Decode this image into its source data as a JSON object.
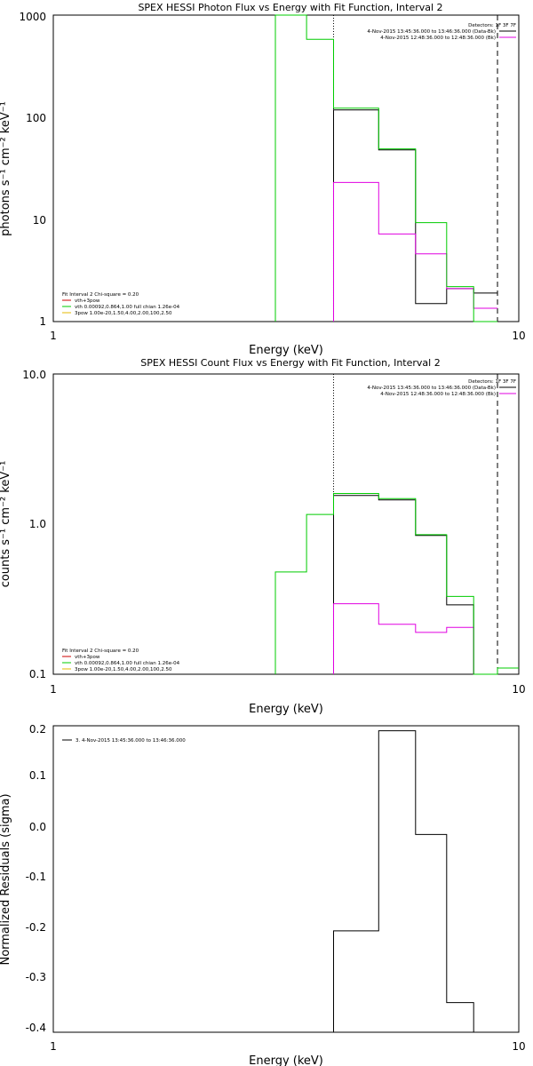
{
  "chart_data": [
    {
      "type": "line",
      "title": "SPEX HESSI Photon Flux vs Energy with Fit Function, Interval 2",
      "xlabel": "Energy (keV)",
      "ylabel": "photons s⁻¹ cm⁻² keV⁻¹",
      "xscale": "log",
      "yscale": "log",
      "xlim": [
        1,
        10
      ],
      "ylim": [
        1,
        1000
      ],
      "x_tick_labels": [
        "1",
        "10"
      ],
      "y_tick_labels": [
        "1",
        "10",
        "100",
        "1000"
      ],
      "grid": false,
      "detectors_label": "Detectors: 1F 3F 7F",
      "time_legend": [
        {
          "text": "4-Nov-2015 13:45:36.000 to 13:46:36.000 (Data-Bk)",
          "color": "#000000"
        },
        {
          "text": "4-Nov-2015 12:48:36.000 to 12:48:36.000 (Bk)",
          "color": "#e000e0"
        }
      ],
      "fit_legend": [
        {
          "text": "Fit Interval 2   Chi-square = 0.20",
          "color": "#000000"
        },
        {
          "text": "vth+3pow",
          "color": "#cc0000"
        },
        {
          "text": "vth 0.00092,0.864,1.00  full chian 1.26e-04",
          "color": "#00cc00"
        },
        {
          "text": "3pow 1.00e-20,1.50,4.00,2.00,100,2.50",
          "color": "#e6b800"
        }
      ],
      "vlines": [
        {
          "x": 4.0,
          "style": "dotted"
        },
        {
          "x": 9.0,
          "style": "dashed"
        }
      ],
      "series": [
        {
          "role": "data",
          "color": "#000000",
          "start_x": 4.0,
          "edges": [
            4.0,
            5.0,
            6.0,
            7.0,
            8.0,
            9.0
          ],
          "values": [
            118,
            48,
            1.5,
            2.1,
            1.9
          ]
        },
        {
          "role": "background",
          "color": "#e000e0",
          "start_x": 4.0,
          "edges": [
            4.0,
            5.0,
            6.0,
            7.0,
            8.0,
            9.0
          ],
          "values": [
            23,
            7.2,
            4.6,
            2.1,
            1.35
          ]
        },
        {
          "role": "fit",
          "color": "#00cc00",
          "start_x": 3.0,
          "edges": [
            3.0,
            3.5,
            4.0,
            5.0,
            6.0,
            7.0,
            8.0,
            9.0
          ],
          "values": [
            1200,
            580,
            123,
            49,
            9.3,
            2.2,
            0.5
          ]
        }
      ]
    },
    {
      "type": "line",
      "title": "SPEX HESSI Count Flux vs Energy with Fit Function, Interval 2",
      "xlabel": "Energy (keV)",
      "ylabel": "counts s⁻¹ cm⁻² keV⁻¹",
      "xscale": "log",
      "yscale": "log",
      "xlim": [
        1,
        10
      ],
      "ylim": [
        0.1,
        10
      ],
      "x_tick_labels": [
        "1",
        "10"
      ],
      "y_tick_labels": [
        "0.1",
        "1.0",
        "10.0"
      ],
      "grid": false,
      "detectors_label": "Detectors: 1F 3F 7F",
      "time_legend": [
        {
          "text": "4-Nov-2015 13:45:36.000 to 13:46:36.000 (Data-Bk)",
          "color": "#000000"
        },
        {
          "text": "4-Nov-2015 12:48:36.000 to 12:48:36.000 (Bk)",
          "color": "#e000e0"
        }
      ],
      "fit_legend": [
        {
          "text": "Fit Interval 2   Chi-square = 0.20",
          "color": "#000000"
        },
        {
          "text": "vth+3pow",
          "color": "#cc0000"
        },
        {
          "text": "vth 0.00092,0.864,1.00  full chian 1.26e-04",
          "color": "#00cc00"
        },
        {
          "text": "3pow 1.00e-20,1.50,4.00,2.00,100,2.50",
          "color": "#e6b800"
        }
      ],
      "vlines": [
        {
          "x": 4.0,
          "style": "dotted"
        },
        {
          "x": 9.0,
          "style": "dashed"
        }
      ],
      "series": [
        {
          "role": "data",
          "color": "#000000",
          "start_x": 4.0,
          "edges": [
            4.0,
            5.0,
            6.0,
            7.0,
            8.0,
            9.0
          ],
          "values": [
            1.55,
            1.45,
            0.84,
            0.29,
            0.09
          ]
        },
        {
          "role": "background",
          "color": "#e000e0",
          "start_x": 4.0,
          "edges": [
            4.0,
            5.0,
            6.0,
            7.0,
            8.0,
            9.0
          ],
          "values": [
            0.295,
            0.215,
            0.19,
            0.205,
            0.09
          ]
        },
        {
          "role": "fit",
          "color": "#00cc00",
          "start_x": 3.0,
          "edges": [
            3.0,
            3.5,
            4.0,
            5.0,
            6.0,
            7.0,
            8.0,
            9.0,
            10.0
          ],
          "values": [
            0.48,
            1.16,
            1.6,
            1.48,
            0.85,
            0.33,
            0.08,
            0.11
          ]
        }
      ]
    },
    {
      "type": "line",
      "title": "",
      "xlabel": "Energy (keV)",
      "ylabel": "Normalized Residuals (sigma)",
      "xscale": "log",
      "yscale": "linear",
      "xlim": [
        1,
        10
      ],
      "ylim": [
        -0.41,
        0.21
      ],
      "x_tick_labels": [
        "1",
        "10"
      ],
      "y_tick_labels": [
        "0.2",
        "0.1",
        "0.0",
        "-0.1",
        "-0.2",
        "-0.3",
        "-0.4"
      ],
      "grid": false,
      "legend": [
        {
          "text": "3.  4-Nov-2015 13:45:36.000 to 13:46:36.000",
          "color": "#000000"
        }
      ],
      "series": [
        {
          "role": "residuals",
          "color": "#000000",
          "start_x": 4.0,
          "edges": [
            4.0,
            5.0,
            6.0,
            7.0,
            8.0,
            9.0
          ],
          "values": [
            -0.205,
            0.2,
            -0.01,
            -0.35,
            -0.42
          ]
        }
      ]
    }
  ]
}
